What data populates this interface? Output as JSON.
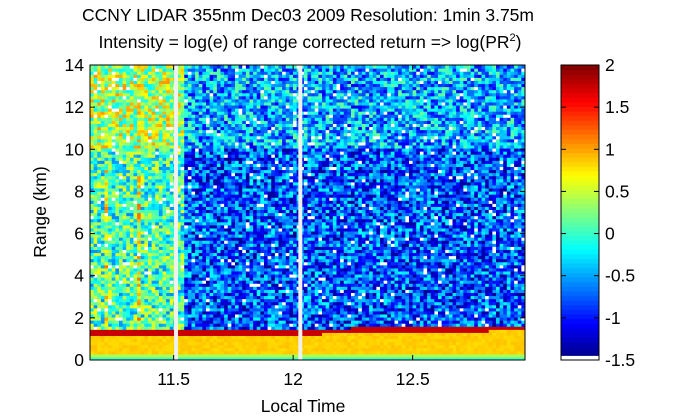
{
  "chart_data": {
    "type": "heatmap",
    "title": "CCNY LIDAR 355nm Dec03 2009 Resolution: 1min 3.75m",
    "subtitle": {
      "prefix": "Intensity = log(e) of range corrected return => log(PR",
      "superscript": "2",
      "suffix": ")"
    },
    "xlabel": "Local Time",
    "ylabel": "Range (km)",
    "xlim": [
      11.15,
      12.97
    ],
    "ylim": [
      0,
      14
    ],
    "xticks": [
      11.5,
      12,
      12.5
    ],
    "xtick_labels": [
      "11.5",
      "12",
      "12.5"
    ],
    "yticks": [
      0,
      2,
      4,
      6,
      8,
      10,
      12,
      14
    ],
    "ytick_labels": [
      "0",
      "2",
      "4",
      "6",
      "8",
      "10",
      "12",
      "14"
    ],
    "colormap": "jet",
    "clim": [
      -1.5,
      2
    ],
    "colorbar_ticks": [
      -1.5,
      -1,
      -0.5,
      0,
      0.5,
      1,
      1.5,
      2
    ],
    "colorbar_labels": [
      "-1.5",
      "-1",
      "-0.5",
      "0",
      "0.5",
      "1",
      "1.5",
      "2"
    ],
    "data_gaps_time": [
      11.51,
      12.03
    ],
    "boundary_layer_top_km": [
      [
        11.15,
        1.35
      ],
      [
        11.3,
        1.35
      ],
      [
        11.45,
        1.35
      ],
      [
        11.6,
        1.3
      ],
      [
        11.8,
        1.3
      ],
      [
        12.0,
        1.3
      ],
      [
        12.2,
        1.4
      ],
      [
        12.4,
        1.45
      ],
      [
        12.6,
        1.45
      ],
      [
        12.8,
        1.5
      ],
      [
        12.97,
        1.55
      ]
    ],
    "grid": false
  }
}
